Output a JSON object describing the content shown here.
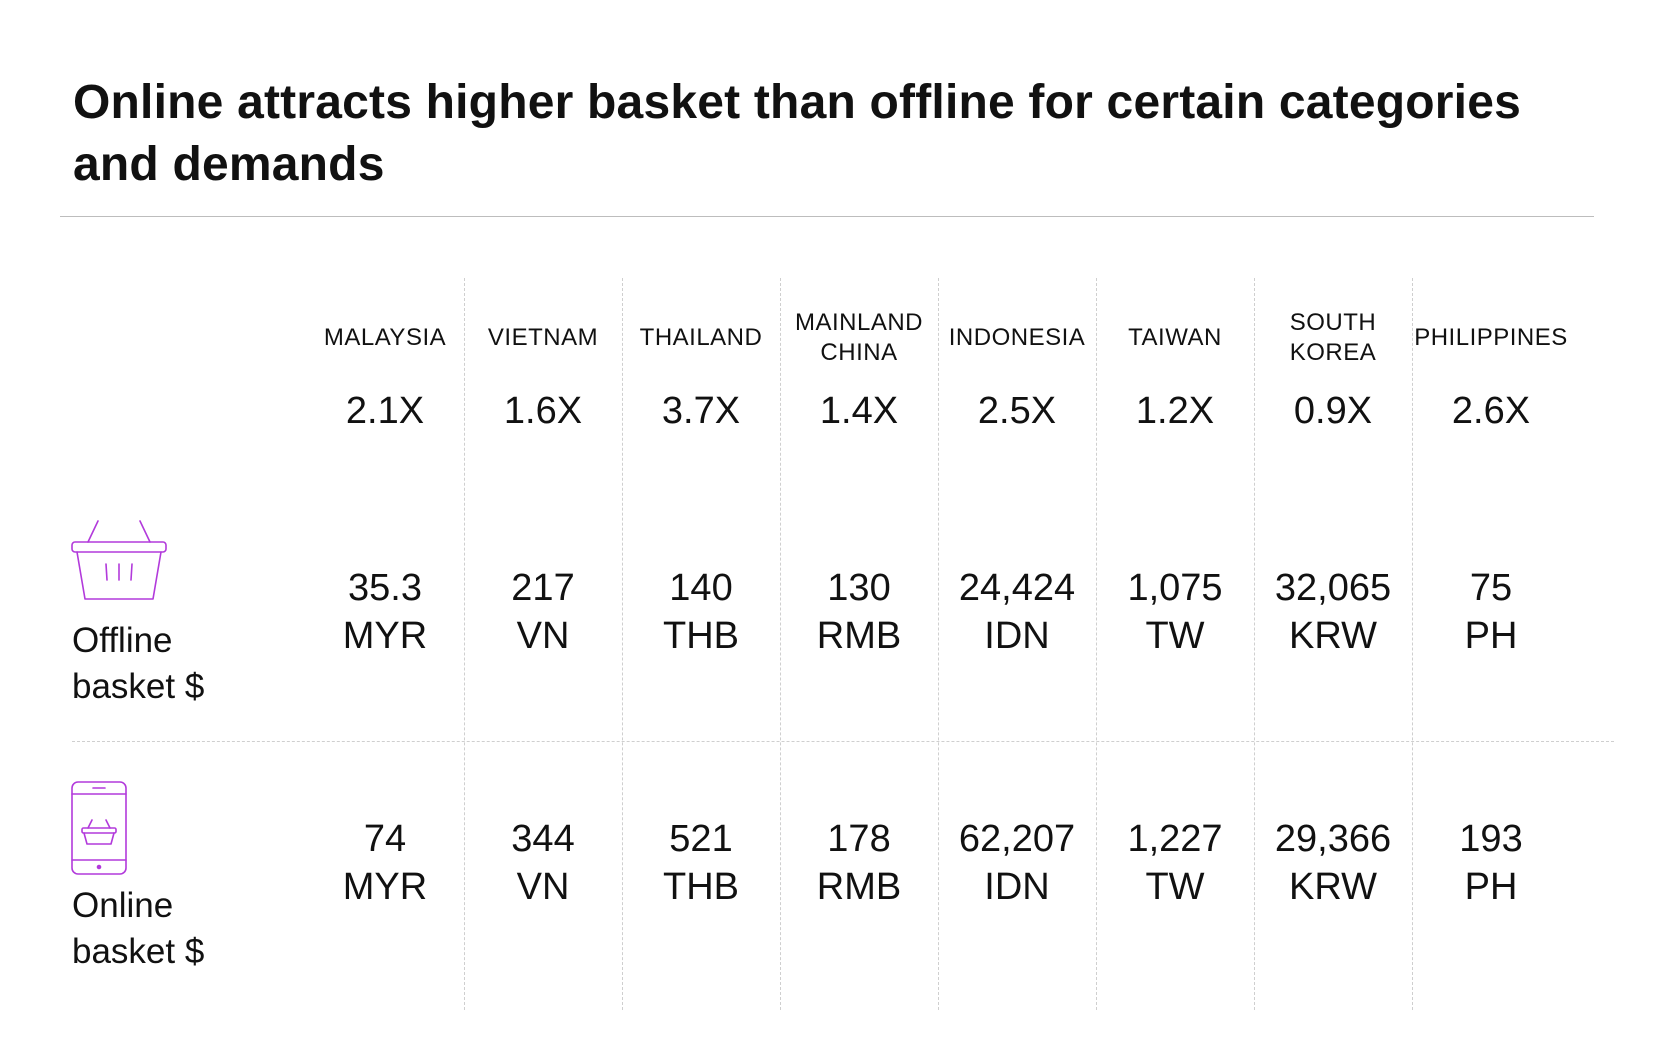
{
  "title": "Online attracts higher basket than offline for certain categories and demands",
  "icons": {
    "offline": "shopping-basket-icon",
    "online": "mobile-shopping-icon"
  },
  "colors": {
    "icon_accent": "#b23adb",
    "text": "#111111",
    "divider": "#cfcfcf"
  },
  "rows": {
    "offline": {
      "label_line1": "Offline",
      "label_line2": "basket $"
    },
    "online": {
      "label_line1": "Online",
      "label_line2": "basket $"
    }
  },
  "chart_data": {
    "type": "table",
    "title": "Online attracts higher basket than offline for certain categories and demands",
    "columns": [
      {
        "country": "MALAYSIA",
        "country_line1": "MALAYSIA",
        "country_line2": "",
        "multiplier": "2.1X",
        "offline_value": "35.3",
        "offline_currency": "MYR",
        "online_value": "74",
        "online_currency": "MYR"
      },
      {
        "country": "VIETNAM",
        "country_line1": "VIETNAM",
        "country_line2": "",
        "multiplier": "1.6X",
        "offline_value": "217",
        "offline_currency": "VN",
        "online_value": "344",
        "online_currency": "VN"
      },
      {
        "country": "THAILAND",
        "country_line1": "THAILAND",
        "country_line2": "",
        "multiplier": "3.7X",
        "offline_value": "140",
        "offline_currency": "THB",
        "online_value": "521",
        "online_currency": "THB"
      },
      {
        "country": "MAINLAND CHINA",
        "country_line1": "MAINLAND",
        "country_line2": "CHINA",
        "multiplier": "1.4X",
        "offline_value": "130",
        "offline_currency": "RMB",
        "online_value": "178",
        "online_currency": "RMB"
      },
      {
        "country": "INDONESIA",
        "country_line1": "INDONESIA",
        "country_line2": "",
        "multiplier": "2.5X",
        "offline_value": "24,424",
        "offline_currency": "IDN",
        "online_value": "62,207",
        "online_currency": "IDN"
      },
      {
        "country": "TAIWAN",
        "country_line1": "TAIWAN",
        "country_line2": "",
        "multiplier": "1.2X",
        "offline_value": "1,075",
        "offline_currency": "TW",
        "online_value": "1,227",
        "online_currency": "TW"
      },
      {
        "country": "SOUTH KOREA",
        "country_line1": "SOUTH",
        "country_line2": "KOREA",
        "multiplier": "0.9X",
        "offline_value": "32,065",
        "offline_currency": "KRW",
        "online_value": "29,366",
        "online_currency": "KRW"
      },
      {
        "country": "PHILIPPINES",
        "country_line1": "PHILIPPINES",
        "country_line2": "",
        "multiplier": "2.6X",
        "offline_value": "75",
        "offline_currency": "PH",
        "online_value": "193",
        "online_currency": "PH"
      }
    ]
  }
}
